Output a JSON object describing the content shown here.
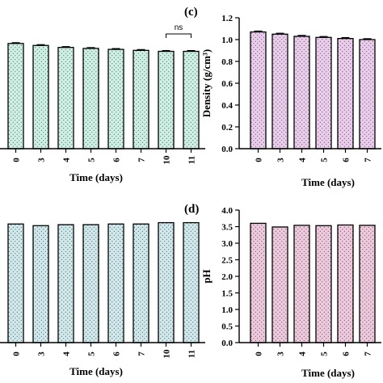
{
  "colors": {
    "panel_a": "#cdf1e4",
    "panel_b": "#cfe9ec",
    "panel_c": "#eccdee",
    "panel_d": "#efc9de",
    "dots": "#3a3a3a"
  },
  "chart_data": [
    {
      "id": "a",
      "type": "bar",
      "panel_label": "",
      "categories": [
        "0",
        "3",
        "4",
        "5",
        "6",
        "7",
        "10",
        "11"
      ],
      "values": [
        1.07,
        1.05,
        1.03,
        1.02,
        1.01,
        1.0,
        0.99,
        0.99
      ],
      "errors": [
        0.008,
        0.008,
        0.008,
        0.008,
        0.008,
        0.008,
        0.008,
        0.008
      ],
      "xlabel": "Time (days)",
      "ylabel": "",
      "ylim": [
        0,
        1.2
      ],
      "annotations": [
        {
          "text": "ns",
          "from": "10",
          "to": "11"
        }
      ]
    },
    {
      "id": "b",
      "type": "bar",
      "panel_label": "",
      "categories": [
        "0",
        "3",
        "4",
        "5",
        "6",
        "7",
        "10",
        "11"
      ],
      "values": [
        3.58,
        3.53,
        3.56,
        3.56,
        3.58,
        3.58,
        3.62,
        3.62
      ],
      "xlabel": "Time (days)",
      "ylabel": "",
      "ylim": [
        0,
        4.0
      ]
    },
    {
      "id": "c",
      "type": "bar",
      "panel_label": "(c)",
      "categories": [
        "0",
        "3",
        "4",
        "5",
        "6",
        "7"
      ],
      "values": [
        1.07,
        1.05,
        1.03,
        1.02,
        1.01,
        1.0
      ],
      "errors": [
        0.008,
        0.008,
        0.008,
        0.008,
        0.008,
        0.008
      ],
      "xlabel": "Time (days)",
      "ylabel": "Density (g/cm³)",
      "ylim": [
        0,
        1.2
      ],
      "yticks": [
        "0.0",
        "0.2",
        "0.4",
        "0.6",
        "0.8",
        "1.0",
        "1.2"
      ]
    },
    {
      "id": "d",
      "type": "bar",
      "panel_label": "(d)",
      "categories": [
        "0",
        "3",
        "4",
        "5",
        "6",
        "7"
      ],
      "values": [
        3.6,
        3.49,
        3.54,
        3.53,
        3.55,
        3.54
      ],
      "xlabel": "Time (days)",
      "ylabel": "pH",
      "ylim": [
        0,
        4.0
      ],
      "yticks": [
        "0.0",
        "0.5",
        "1.0",
        "1.5",
        "2.0",
        "2.5",
        "3.0",
        "3.5",
        "4.0"
      ]
    }
  ]
}
